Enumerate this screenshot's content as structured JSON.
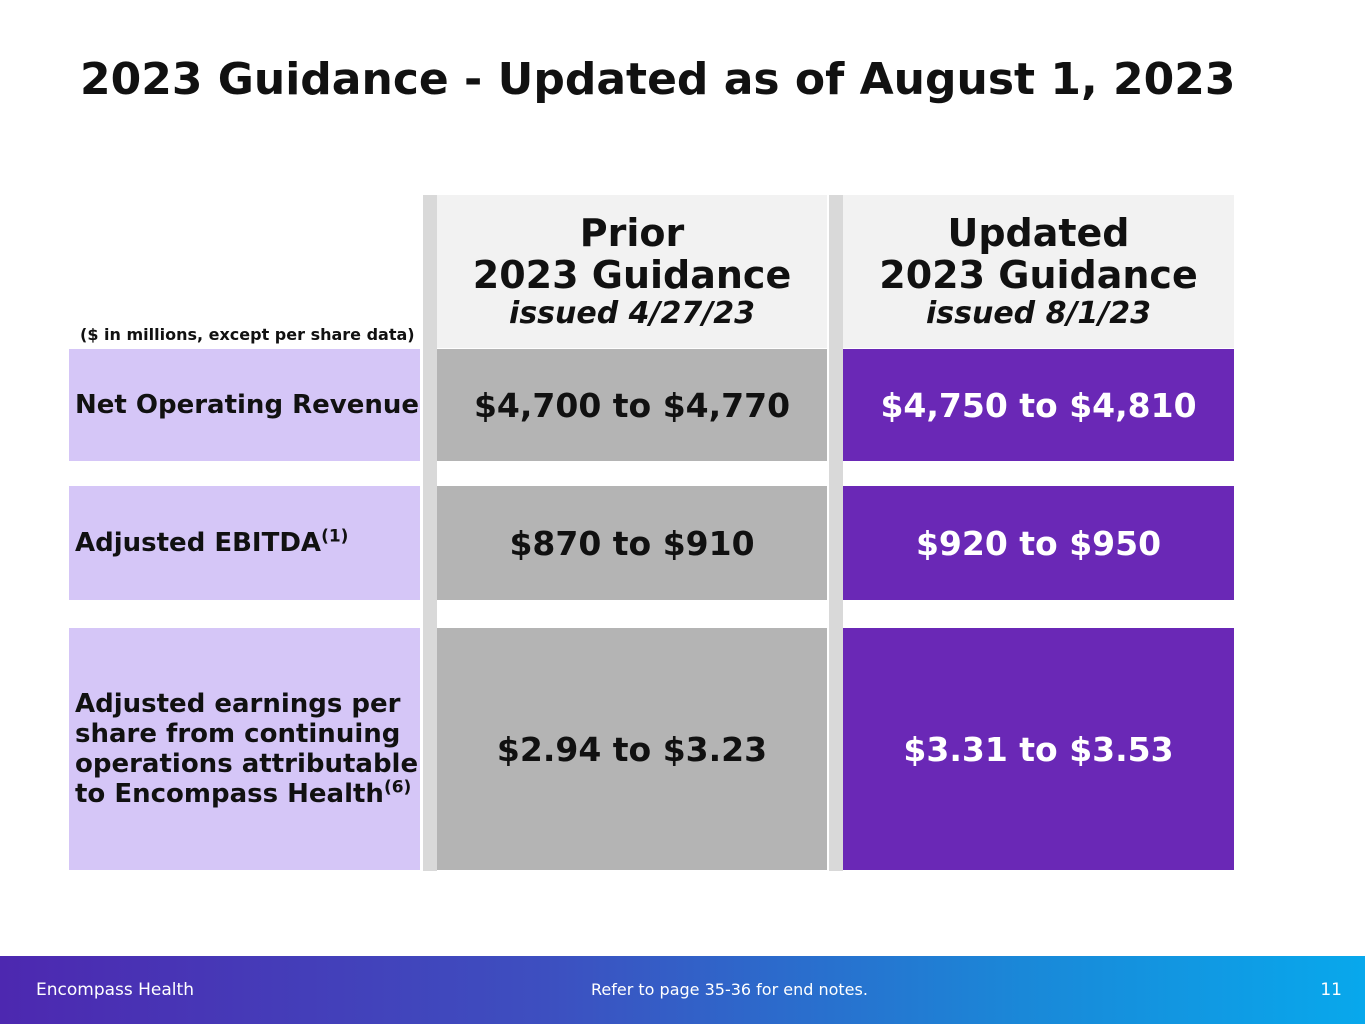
{
  "title": "2023 Guidance - Updated as of August 1, 2023",
  "units_note": "($ in millions, except per share data)",
  "columns": {
    "prior": {
      "line1": "Prior",
      "line2": "2023 Guidance",
      "issued": "issued 4/27/23"
    },
    "updated": {
      "line1": "Updated",
      "line2": "2023 Guidance",
      "issued": "issued 8/1/23"
    }
  },
  "rows": [
    {
      "label": "Net Operating Revenue",
      "note": "",
      "prior": "$4,700 to $4,770",
      "updated": "$4,750 to $4,810"
    },
    {
      "label": "Adjusted EBITDA",
      "note": "(1)",
      "prior": "$870 to $910",
      "updated": "$920 to $950"
    },
    {
      "label_lines": [
        "Adjusted earnings per",
        "share from continuing",
        "operations attributable",
        "to Encompass Health"
      ],
      "note": "(6)",
      "prior": "$2.94 to $3.23",
      "updated": "$3.31 to $3.53"
    }
  ],
  "footer": {
    "brand": "Encompass Health",
    "note": "Refer to page 35-36 for end notes.",
    "page_number": "11"
  },
  "colors": {
    "label_bg": "#d5c6f7",
    "prior_bg": "#b4b4b4",
    "updated_bg": "#6a28b6",
    "header_bg": "#f2f2f2"
  }
}
